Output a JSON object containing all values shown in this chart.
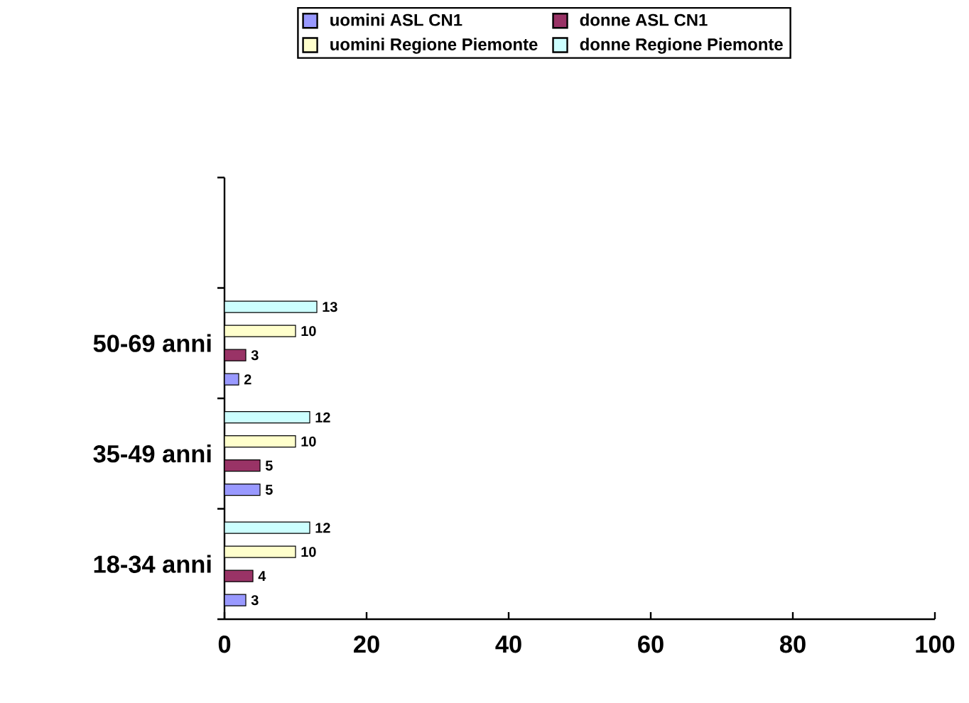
{
  "chart_data": {
    "type": "bar",
    "orientation": "horizontal",
    "categories": [
      null,
      "50-69 anni",
      "35-49 anni",
      "18-34 anni"
    ],
    "series": [
      {
        "name": "uomini ASL CN1",
        "color": "#9999ff",
        "values": [
          null,
          2,
          5,
          3
        ]
      },
      {
        "name": "donne ASL CN1",
        "color": "#993366",
        "values": [
          null,
          3,
          5,
          4
        ]
      },
      {
        "name": "uomini Regione Piemonte",
        "color": "#ffffcc",
        "values": [
          null,
          10,
          10,
          10
        ]
      },
      {
        "name": "donne Regione Piemonte",
        "color": "#ccffff",
        "values": [
          null,
          13,
          12,
          12
        ]
      }
    ],
    "xlim": [
      0,
      100
    ],
    "xticks": [
      0,
      20,
      40,
      60,
      80,
      100
    ],
    "data_labels": true,
    "legend": "top",
    "grid": false
  }
}
